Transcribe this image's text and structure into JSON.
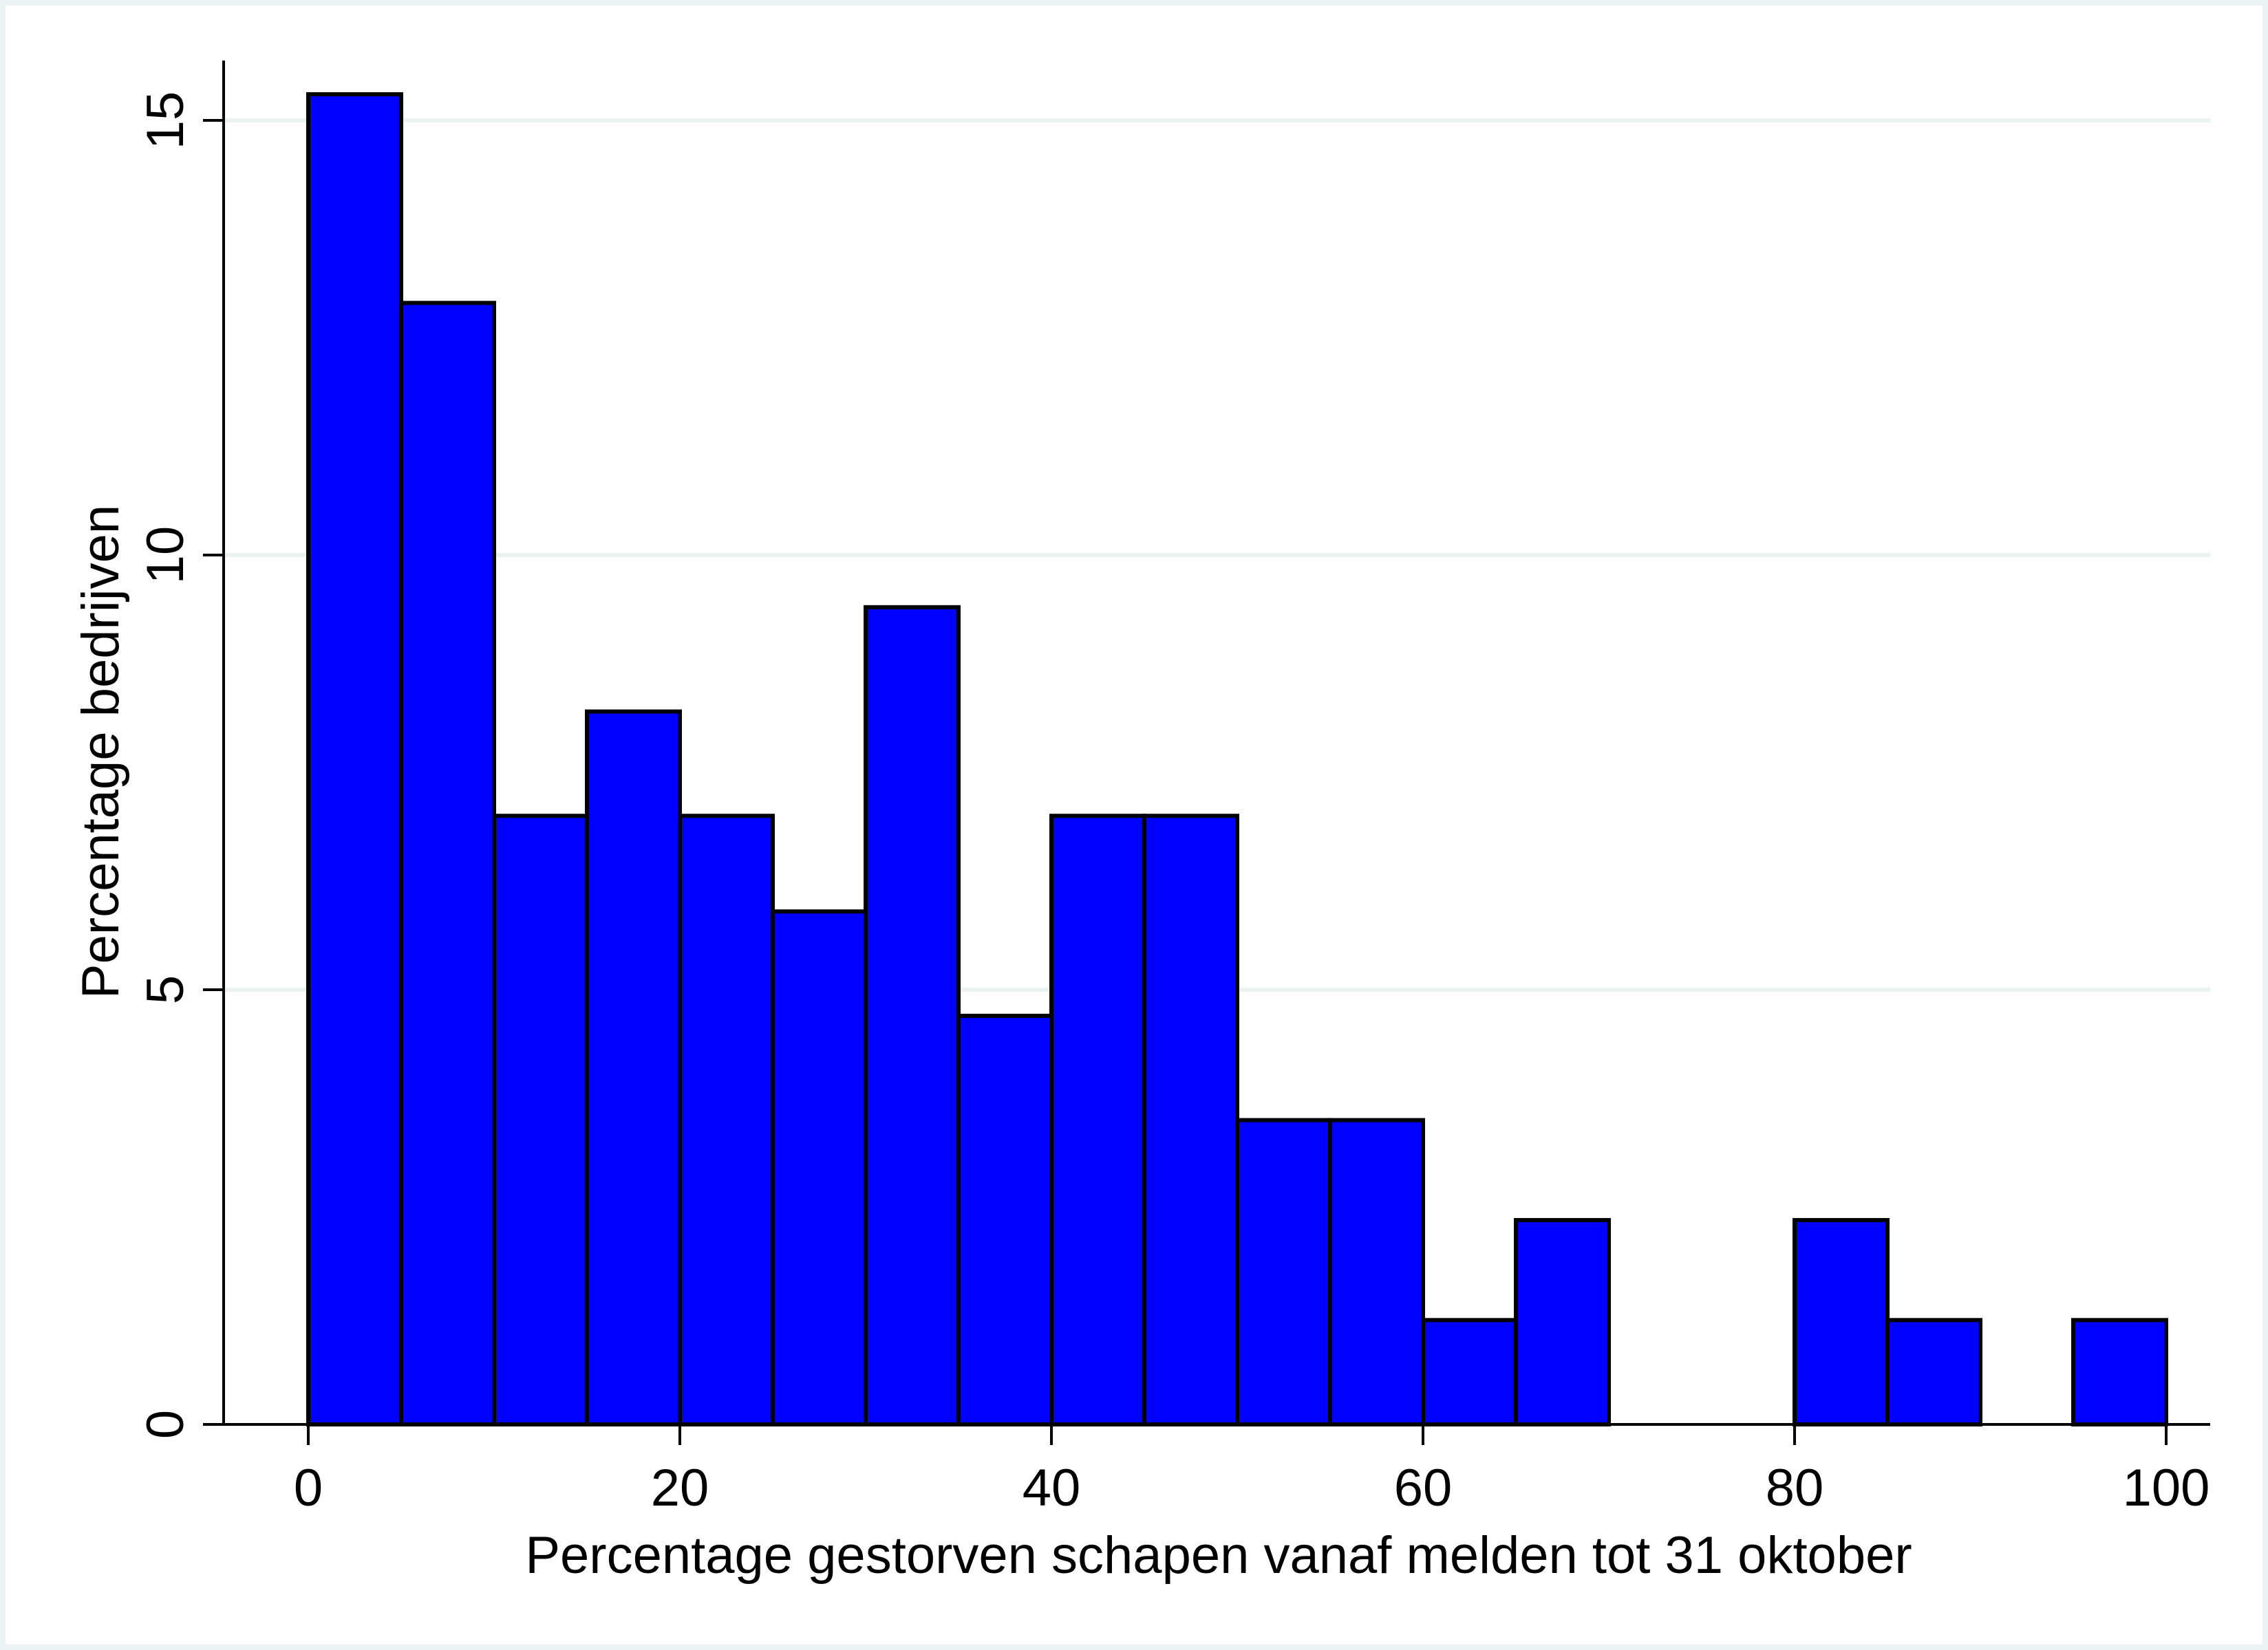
{
  "chart_data": {
    "type": "bar",
    "subtype": "histogram",
    "title": "",
    "xlabel": "Percentage gestorven schapen vanaf melden tot 31 oktober",
    "ylabel": "Percentage bedrijven",
    "xlim": [
      0,
      100
    ],
    "ylim": [
      0,
      15
    ],
    "x_ticks": [
      "0",
      "20",
      "40",
      "60",
      "80",
      "100"
    ],
    "y_ticks": [
      "0",
      "5",
      "10",
      "15"
    ],
    "grid": true,
    "bin_width": 5,
    "bins": [
      {
        "start": 0,
        "end": 5,
        "value": 15.3
      },
      {
        "start": 5,
        "end": 10,
        "value": 12.9
      },
      {
        "start": 10,
        "end": 15,
        "value": 7.0
      },
      {
        "start": 15,
        "end": 20,
        "value": 8.2
      },
      {
        "start": 20,
        "end": 25,
        "value": 7.0
      },
      {
        "start": 25,
        "end": 30,
        "value": 5.9
      },
      {
        "start": 30,
        "end": 35,
        "value": 9.4
      },
      {
        "start": 35,
        "end": 40,
        "value": 4.7
      },
      {
        "start": 40,
        "end": 45,
        "value": 7.0
      },
      {
        "start": 45,
        "end": 50,
        "value": 7.0
      },
      {
        "start": 50,
        "end": 55,
        "value": 3.5
      },
      {
        "start": 55,
        "end": 60,
        "value": 3.5
      },
      {
        "start": 60,
        "end": 65,
        "value": 1.2
      },
      {
        "start": 65,
        "end": 70,
        "value": 2.35
      },
      {
        "start": 80,
        "end": 85,
        "value": 2.35
      },
      {
        "start": 85,
        "end": 90,
        "value": 1.2
      },
      {
        "start": 95,
        "end": 100,
        "value": 1.2
      }
    ],
    "bar_color": "#0000ff",
    "bar_outline_color": "#000000",
    "grid_color": "#eaf2f3"
  }
}
